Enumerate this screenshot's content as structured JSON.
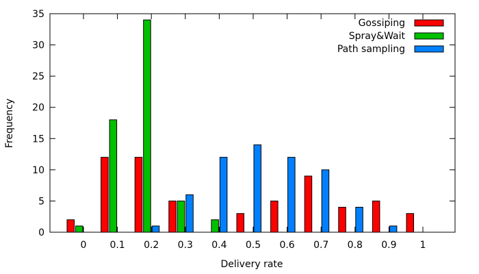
{
  "chart_data": {
    "type": "bar",
    "xlabel": "Delivery rate",
    "ylabel": "Frequency",
    "categories": [
      "0",
      "0.1",
      "0.2",
      "0.3",
      "0.4",
      "0.5",
      "0.6",
      "0.7",
      "0.8",
      "0.9",
      "1"
    ],
    "ylim": [
      0,
      35
    ],
    "yticks": [
      "0",
      "5",
      "10",
      "15",
      "20",
      "25",
      "30",
      "35"
    ],
    "legend_position": "top-right",
    "grid": false,
    "series": [
      {
        "name": "Gossiping",
        "color": "#ff0000",
        "values": [
          2,
          12,
          12,
          5,
          0,
          3,
          5,
          9,
          4,
          5,
          3
        ]
      },
      {
        "name": "Spray&Wait",
        "color": "#00c000",
        "values": [
          1,
          18,
          34,
          5,
          2,
          0,
          0,
          0,
          0,
          0,
          0
        ]
      },
      {
        "name": "Path sampling",
        "color": "#0080ff",
        "values": [
          0,
          0,
          1,
          6,
          12,
          14,
          12,
          10,
          4,
          1,
          0
        ]
      }
    ]
  }
}
